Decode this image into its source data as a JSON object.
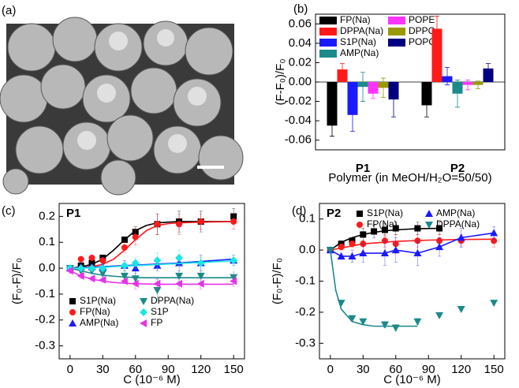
{
  "image_panel": {
    "label": "(a)"
  },
  "chart_data": [
    {
      "type": "bar",
      "panel_label": "(b)",
      "ylabel": "(F-F₀)/F₀",
      "xlabel": "Polymer (in MeOH/H₂O=50/50)",
      "categories": [
        "P1",
        "P2"
      ],
      "ylim": [
        -0.07,
        0.07
      ],
      "yticks": [
        -0.06,
        -0.04,
        -0.02,
        {
          "value": 0,
          "label": "0.00"
        },
        0.02,
        0.04,
        0.06
      ],
      "series": [
        {
          "name": "FP(Na)",
          "color": "#000000",
          "values": [
            -0.045,
            -0.024
          ],
          "errors": [
            0.011,
            0.012
          ]
        },
        {
          "name": "DPPA(Na)",
          "color": "#ff1a1a",
          "values": [
            0.013,
            0.055
          ],
          "errors": [
            0.006,
            0.013
          ]
        },
        {
          "name": "S1P(Na)",
          "color": "#1a1aff",
          "values": [
            -0.034,
            0.006
          ],
          "errors": [
            0.017,
            0.009
          ]
        },
        {
          "name": "AMP(Na)",
          "color": "#1a8a8a",
          "values": [
            -0.005,
            -0.012
          ],
          "errors": [
            0.015,
            0.014
          ]
        },
        {
          "name": "POPE",
          "color": "#ff33ff",
          "values": [
            -0.012,
            -0.003
          ],
          "errors": [
            0.005,
            0.005
          ]
        },
        {
          "name": "DPPC",
          "color": "#999900",
          "values": [
            -0.006,
            -0.003
          ],
          "errors": [
            0.01,
            0.004
          ]
        },
        {
          "name": "POPC",
          "color": "#000080",
          "values": [
            -0.018,
            0.014
          ],
          "errors": [
            0.018,
            0.005
          ]
        }
      ]
    },
    {
      "type": "scatter",
      "panel_label": "(c)",
      "annotation": "P1",
      "ylabel": "(F₀-F)/F₀",
      "xlabel": "C (10⁻⁶ M)",
      "xlim": [
        -10,
        160
      ],
      "xticks": [
        0,
        30,
        60,
        90,
        120,
        150
      ],
      "ylim": [
        -0.35,
        0.25
      ],
      "yticks": [
        -0.3,
        -0.2,
        -0.1,
        {
          "value": 0,
          "label": "0.0"
        },
        0.1,
        0.2
      ],
      "series": [
        {
          "name": "S1P(Na)",
          "color": "#000000",
          "marker": "square",
          "x": [
            0,
            10,
            20,
            30,
            50,
            60,
            80,
            100,
            120,
            150
          ],
          "values": [
            0,
            0.01,
            0.02,
            0.04,
            0.11,
            0.14,
            0.17,
            0.18,
            0.18,
            0.2
          ],
          "errors": [
            0,
            0.005,
            0.005,
            0.01,
            0.01,
            0.02,
            0.04,
            0.04,
            0.04,
            0.03
          ],
          "fit_x": [
            0,
            10,
            20,
            30,
            40,
            50,
            60,
            70,
            80,
            90,
            100,
            120,
            150
          ],
          "fit_values": [
            0,
            0.005,
            0.015,
            0.035,
            0.07,
            0.11,
            0.145,
            0.165,
            0.175,
            0.178,
            0.18,
            0.18,
            0.18
          ]
        },
        {
          "name": "FP(Na)",
          "color": "#ff1a1a",
          "marker": "circle",
          "x": [
            0,
            10,
            20,
            30,
            50,
            60,
            80,
            100,
            120,
            150
          ],
          "values": [
            0,
            0.035,
            0.04,
            0.03,
            0.08,
            0.12,
            0.17,
            0.17,
            0.18,
            0.18
          ],
          "errors": [
            0,
            0.005,
            0.01,
            0.01,
            0.02,
            0.03,
            0.04,
            0.04,
            0.03,
            0.03
          ],
          "fit_x": [
            0,
            10,
            20,
            30,
            40,
            50,
            60,
            70,
            80,
            90,
            100,
            120,
            150
          ],
          "fit_values": [
            0,
            0.002,
            0.006,
            0.015,
            0.035,
            0.07,
            0.11,
            0.145,
            0.165,
            0.172,
            0.175,
            0.178,
            0.18
          ]
        },
        {
          "name": "AMP(Na)",
          "color": "#1a1aff",
          "marker": "triangle-up",
          "x": [
            0,
            10,
            20,
            30,
            50,
            60,
            80,
            100,
            120,
            150
          ],
          "values": [
            0,
            0.005,
            0.005,
            0.005,
            0.01,
            0,
            0.01,
            0.02,
            0.02,
            0.03
          ],
          "errors": [
            0,
            0.005,
            0.01,
            0.01,
            0.02,
            0.03,
            0.02,
            0.03,
            0.03,
            0.02
          ],
          "fit_x": [
            0,
            10,
            20,
            30,
            40,
            50,
            60,
            70,
            80,
            90,
            100,
            120,
            150
          ],
          "fit_values": [
            0,
            0.002,
            0.004,
            0.006,
            0.008,
            0.01,
            0.012,
            0.014,
            0.016,
            0.018,
            0.02,
            0.026,
            0.035
          ]
        },
        {
          "name": "DPPA(Na)",
          "color": "#1a8a8a",
          "marker": "triangle-down",
          "x": [
            0,
            10,
            20,
            30,
            50,
            60,
            80,
            100,
            120,
            150
          ],
          "values": [
            0,
            -0.01,
            -0.01,
            -0.02,
            -0.03,
            -0.04,
            -0.085,
            -0.03,
            -0.03,
            -0.035
          ],
          "errors": [
            0,
            0.01,
            0.01,
            0.01,
            0.02,
            0.02,
            0.04,
            0.02,
            0.02,
            0.02
          ],
          "fit_x": [
            0,
            10,
            20,
            30,
            40,
            50,
            60,
            70,
            80,
            90,
            100,
            120,
            150
          ],
          "fit_values": [
            0,
            -0.01,
            -0.02,
            -0.027,
            -0.031,
            -0.034,
            -0.036,
            -0.037,
            -0.037,
            -0.037,
            -0.037,
            -0.037,
            -0.037
          ]
        },
        {
          "name": "S1P",
          "color": "#1ae6e6",
          "marker": "diamond",
          "x": [
            0,
            10,
            20,
            30,
            50,
            60,
            80,
            100,
            120,
            150
          ],
          "values": [
            0,
            0,
            0,
            0,
            0.01,
            0.02,
            0.03,
            0.04,
            0.02,
            0.03
          ],
          "errors": [
            0,
            0.005,
            0.005,
            0.01,
            0.01,
            0.02,
            0.03,
            0.03,
            0.02,
            0.02
          ],
          "fit_x": [
            0,
            10,
            20,
            30,
            40,
            50,
            60,
            70,
            80,
            90,
            100,
            120,
            150
          ],
          "fit_values": [
            0,
            0,
            0.002,
            0.004,
            0.006,
            0.008,
            0.01,
            0.012,
            0.014,
            0.016,
            0.018,
            0.022,
            0.028
          ]
        },
        {
          "name": "FP",
          "color": "#e633e6",
          "marker": "triangle-left",
          "x": [
            0,
            10,
            20,
            30,
            50,
            60,
            80,
            100,
            120,
            150
          ],
          "values": [
            -0.01,
            -0.03,
            -0.04,
            -0.045,
            -0.05,
            -0.06,
            -0.06,
            -0.06,
            -0.06,
            -0.05
          ],
          "errors": [
            0.01,
            0.01,
            0.01,
            0.01,
            0.01,
            0.02,
            0.02,
            0.02,
            0.02,
            0.02
          ],
          "fit_x": [
            0,
            10,
            20,
            30,
            40,
            50,
            60,
            70,
            80,
            90,
            100,
            120,
            150
          ],
          "fit_values": [
            -0.01,
            -0.03,
            -0.042,
            -0.05,
            -0.055,
            -0.058,
            -0.06,
            -0.061,
            -0.062,
            -0.062,
            -0.062,
            -0.062,
            -0.062
          ]
        }
      ]
    },
    {
      "type": "scatter",
      "panel_label": "(d)",
      "annotation": "P2",
      "ylabel": "(F₀-F)/F₀",
      "xlabel": "C (10⁻⁶ M)",
      "xlim": [
        -10,
        160
      ],
      "xticks": [
        0,
        30,
        60,
        90,
        120,
        150
      ],
      "ylim": [
        -0.35,
        0.15
      ],
      "yticks": [
        -0.3,
        -0.2,
        -0.1,
        {
          "value": 0,
          "label": "0.0"
        },
        0.1
      ],
      "series": [
        {
          "name": "S1P(Na)",
          "color": "#000000",
          "marker": "square",
          "x": [
            0,
            10,
            20,
            30,
            40,
            50,
            60,
            80,
            100
          ],
          "values": [
            0,
            0.02,
            0.03,
            0.05,
            0.06,
            0.065,
            0.07,
            0.07,
            0.07
          ],
          "errors": [
            0.005,
            0.01,
            0.01,
            0.02,
            0.02,
            0.02,
            0.02,
            0.02,
            0.02
          ],
          "fit_x": [
            0,
            10,
            20,
            30,
            40,
            50,
            60,
            80,
            100
          ],
          "fit_values": [
            0,
            0.025,
            0.04,
            0.05,
            0.057,
            0.062,
            0.065,
            0.069,
            0.07
          ]
        },
        {
          "name": "FP(Na)",
          "color": "#ff1a1a",
          "marker": "circle",
          "x": [
            0,
            10,
            20,
            30,
            50,
            60,
            80,
            100,
            120,
            150
          ],
          "values": [
            0,
            0.01,
            0.02,
            0.02,
            0.03,
            0.02,
            0.03,
            0.03,
            0.03,
            0.03
          ],
          "errors": [
            0.005,
            0.01,
            0.01,
            0.01,
            0.02,
            0.03,
            0.02,
            0.02,
            0.02,
            0.02
          ],
          "fit_x": [
            0,
            30,
            60,
            90,
            120,
            150
          ],
          "fit_values": [
            0,
            0.02,
            0.028,
            0.032,
            0.034,
            0.035
          ]
        },
        {
          "name": "AMP(Na)",
          "color": "#1a1aff",
          "marker": "triangle-up",
          "x": [
            0,
            10,
            20,
            30,
            50,
            60,
            80,
            100,
            120,
            150
          ],
          "values": [
            0,
            -0.02,
            -0.02,
            -0.01,
            -0.01,
            0,
            -0.01,
            0.01,
            0.04,
            0.055
          ],
          "errors": [
            0.005,
            0.01,
            0.02,
            0.03,
            0.04,
            0.04,
            0.04,
            0.03,
            0.03,
            0.02
          ],
          "fit_x": [
            0,
            10,
            20,
            30,
            50,
            60,
            80,
            100,
            120,
            150
          ],
          "fit_values": [
            0,
            -0.02,
            -0.02,
            -0.01,
            -0.01,
            0,
            -0.01,
            0.01,
            0.04,
            0.055
          ]
        },
        {
          "name": "DPPA(Na)",
          "color": "#1a8a8a",
          "marker": "triangle-down",
          "x": [
            0,
            10,
            20,
            30,
            50,
            60,
            80,
            100,
            120,
            150
          ],
          "values": [
            0,
            -0.17,
            -0.22,
            -0.23,
            -0.24,
            -0.25,
            -0.23,
            -0.21,
            -0.19,
            -0.17
          ],
          "errors": [
            0,
            0.005,
            0.01,
            0.01,
            0.01,
            0.01,
            0.01,
            0.005,
            0.005,
            0.005
          ],
          "fit_x": [
            0,
            5,
            10,
            20,
            30,
            40,
            50,
            60,
            80
          ],
          "fit_values": [
            0,
            -0.13,
            -0.19,
            -0.23,
            -0.24,
            -0.245,
            -0.245,
            -0.245,
            -0.245
          ]
        }
      ]
    }
  ]
}
